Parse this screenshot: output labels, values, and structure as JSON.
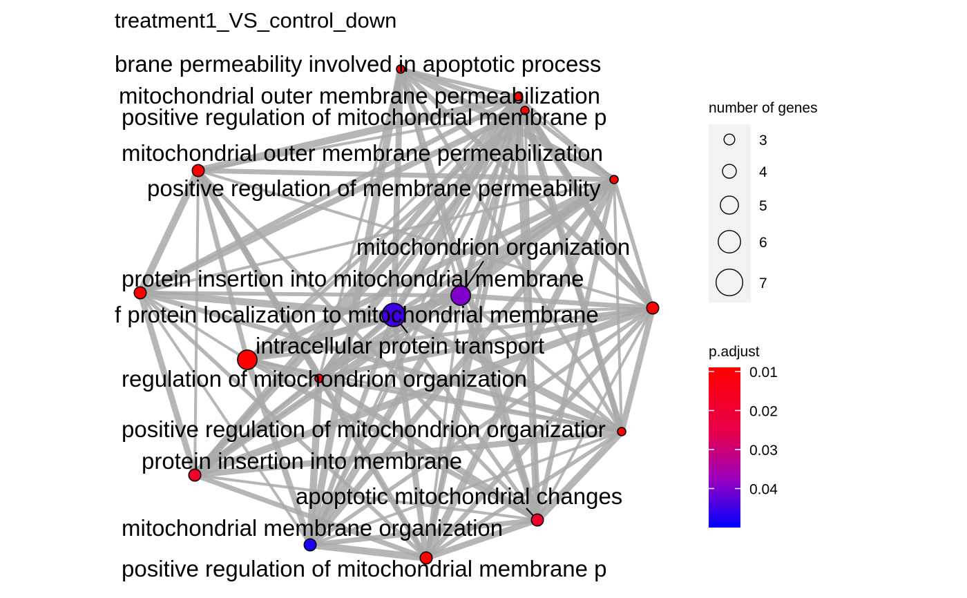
{
  "title": "treatment1_VS_control_down",
  "colors": {
    "edge": "#a9a9a9",
    "low": "#ff0000",
    "high": "#0000ff",
    "legend_bg": "#f2f2f2"
  },
  "nodes": [
    {
      "id": "n1",
      "label": "brane permeability involved in apoptotic process",
      "genes": 3,
      "p_adjust": 0.01
    },
    {
      "id": "n2",
      "label": "mitochondrial outer membrane permeabilization",
      "genes": 3,
      "p_adjust": 0.01
    },
    {
      "id": "n3",
      "label": "positive regulation of mitochondrial membrane p",
      "genes": 3,
      "p_adjust": 0.01
    },
    {
      "id": "n4",
      "label": "mitochondrial outer membrane permeabilization",
      "genes": 4,
      "p_adjust": 0.01
    },
    {
      "id": "n5",
      "label": "positive regulation of membrane permeability",
      "genes": 3,
      "p_adjust": 0.01
    },
    {
      "id": "n6",
      "label": "mitochondrion organization",
      "genes": 6,
      "p_adjust": 0.04
    },
    {
      "id": "n7",
      "label": "protein insertion into mitochondrial membrane",
      "genes": 4,
      "p_adjust": 0.01
    },
    {
      "id": "n8",
      "label": "f protein localization to mitochondrial membrane",
      "genes": 4,
      "p_adjust": 0.01
    },
    {
      "id": "n9",
      "label": "",
      "genes": 7,
      "p_adjust": 0.045
    },
    {
      "id": "n10",
      "label": "intracellular protein transport",
      "genes": 6,
      "p_adjust": 0.01
    },
    {
      "id": "n11",
      "label": "regulation of mitochondrion organization",
      "genes": 3,
      "p_adjust": 0.01
    },
    {
      "id": "n12",
      "label": "positive regulation of mitochondrion organizatior",
      "genes": 3,
      "p_adjust": 0.01
    },
    {
      "id": "n13",
      "label": "protein insertion into membrane",
      "genes": 4,
      "p_adjust": 0.02
    },
    {
      "id": "n14",
      "label": "apoptotic mitochondrial changes",
      "genes": 4,
      "p_adjust": 0.02
    },
    {
      "id": "n15",
      "label": "mitochondrial membrane organization",
      "genes": 4,
      "p_adjust": 0.048
    },
    {
      "id": "n16",
      "label": "positive regulation of mitochondrial membrane p",
      "genes": 4,
      "p_adjust": 0.01
    }
  ],
  "legend": {
    "size_title": "number of genes",
    "size_items": [
      {
        "value": 3,
        "label": "3"
      },
      {
        "value": 4,
        "label": "4"
      },
      {
        "value": 5,
        "label": "5"
      },
      {
        "value": 6,
        "label": "6"
      },
      {
        "value": 7,
        "label": "7"
      }
    ],
    "color_title": "p.adjust",
    "color_ticks": [
      {
        "value": 0.01,
        "label": "0.01"
      },
      {
        "value": 0.02,
        "label": "0.02"
      },
      {
        "value": 0.03,
        "label": "0.03"
      },
      {
        "value": 0.04,
        "label": "0.04"
      }
    ],
    "color_range": [
      0.01,
      0.05
    ]
  }
}
